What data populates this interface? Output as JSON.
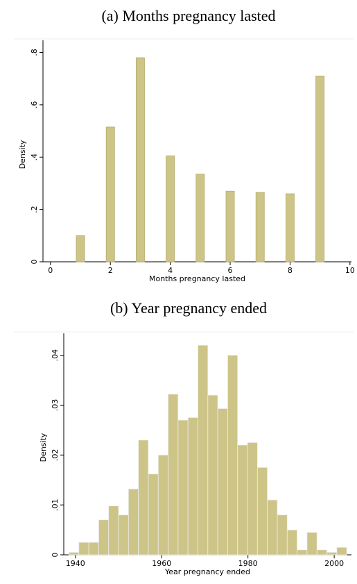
{
  "chart_data": [
    {
      "type": "bar",
      "title": "(a) Months pregnancy lasted",
      "xlabel": "Months pregnancy lasted",
      "ylabel": "Density",
      "x": [
        1,
        2,
        3,
        4,
        5,
        6,
        7,
        8,
        9
      ],
      "values": [
        0.1,
        0.515,
        0.78,
        0.405,
        0.335,
        0.27,
        0.265,
        0.26,
        0.71
      ],
      "color": "#cdc488",
      "xlim": [
        -0.25,
        10.05
      ],
      "xticks": [
        0,
        2,
        4,
        6,
        8,
        10
      ],
      "ylim": [
        0,
        0.82
      ],
      "yticks": [
        0,
        {
          "value": 0.2,
          "label": ".2"
        },
        {
          "value": 0.4,
          "label": ".4"
        },
        {
          "value": 0.6,
          "label": ".6"
        },
        {
          "value": 0.8,
          "label": ".8"
        }
      ]
    },
    {
      "type": "histogram",
      "title": "(b) Year pregnancy ended",
      "xlabel": "Year pregnancy ended",
      "ylabel": "Density",
      "bins": [
        1938.5,
        1940.8,
        1943.1,
        1945.4,
        1947.7,
        1950.0,
        1952.3,
        1954.6,
        1956.9,
        1959.2,
        1961.5,
        1963.8,
        1966.1,
        1968.4,
        1970.7,
        1973.0,
        1975.3,
        1977.6,
        1979.9,
        1982.2,
        1984.5,
        1986.8,
        1989.1,
        1991.4,
        1993.7,
        1996.0,
        1998.3,
        2000.6,
        2002.9
      ],
      "values": [
        0.0005,
        0.0025,
        0.0025,
        0.007,
        0.0098,
        0.008,
        0.0132,
        0.023,
        0.0162,
        0.02,
        0.0322,
        0.027,
        0.0275,
        0.042,
        0.032,
        0.0293,
        0.04,
        0.022,
        0.0225,
        0.0175,
        0.011,
        0.008,
        0.005,
        0.001,
        0.0045,
        0.001,
        0.0005,
        0.0015
      ],
      "color": "#cdc488",
      "xlim": [
        1937.3,
        2004
      ],
      "xticks": [
        1940,
        1960,
        1980,
        2000
      ],
      "ylim": [
        0,
        0.043
      ],
      "yticks": [
        0,
        {
          "value": 0.01,
          "label": ".01"
        },
        {
          "value": 0.02,
          "label": ".02"
        },
        {
          "value": 0.03,
          "label": ".03"
        },
        {
          "value": 0.04,
          "label": ".04"
        }
      ]
    }
  ]
}
